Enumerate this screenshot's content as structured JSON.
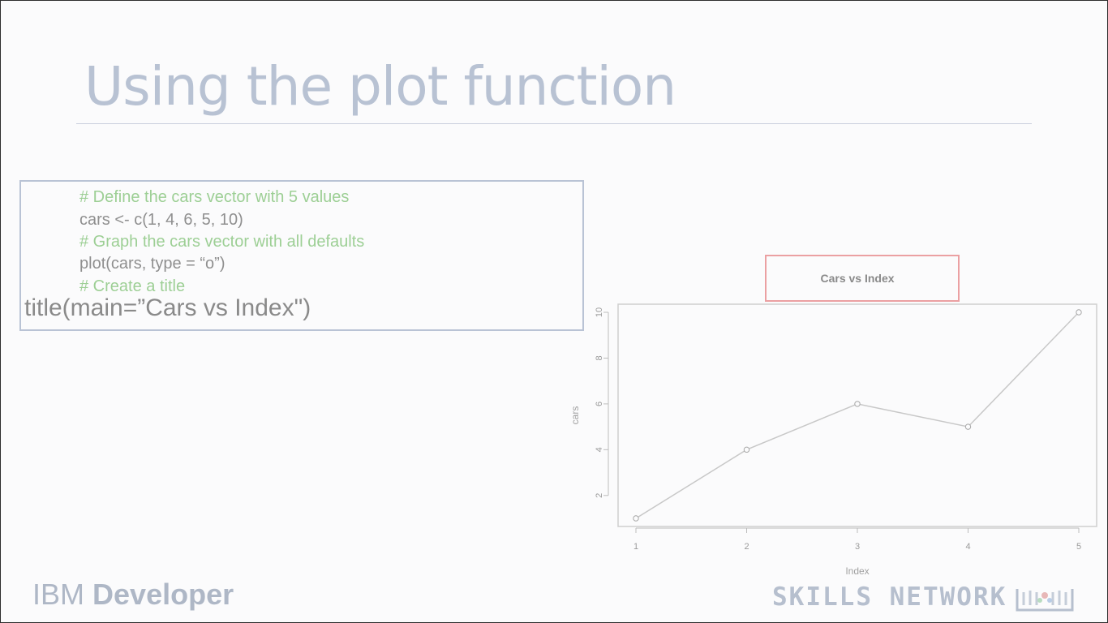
{
  "slide": {
    "title": "Using the plot function"
  },
  "code": {
    "lines": [
      "# Define the cars vector with 5 values",
      "cars <- c(1, 4, 6, 5, 10)",
      "# Graph the cars vector with all defaults",
      "plot(cars, type = “o”)",
      "# Create a title",
      "title(main=”Cars vs Index\")"
    ]
  },
  "chart_data": {
    "type": "line",
    "title": "Cars vs Index",
    "xlabel": "Index",
    "ylabel": "cars",
    "x": [
      1,
      2,
      3,
      4,
      5
    ],
    "values": [
      1,
      4,
      6,
      5,
      10
    ],
    "markers": "open-circle",
    "xticks": [
      "1",
      "2",
      "3",
      "4",
      "5"
    ],
    "yticks": [
      "2",
      "4",
      "6",
      "8",
      "10"
    ],
    "xlim": [
      1,
      5
    ],
    "ylim": [
      1,
      10
    ],
    "grid": false,
    "title_highlight_color": "#eba0a2"
  },
  "footer": {
    "brand_left_light": "IBM",
    "brand_left_bold": "Developer",
    "brand_right": "SKILLS NETWORK"
  },
  "colors": {
    "title": "#b8c2d3",
    "comment": "#9dcf95",
    "code": "#8f8f8f",
    "line": "#c8c8c8"
  }
}
